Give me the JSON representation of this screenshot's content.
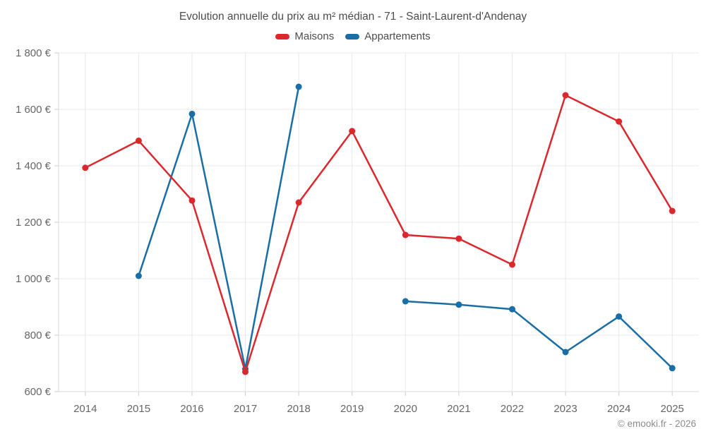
{
  "title": "Evolution annuelle du prix au m² médian - 71 - Saint-Laurent-d'Andenay",
  "footer": "© emooki.fr - 2026",
  "colors": {
    "maisons": "#dc282d",
    "appartements": "#196ea5",
    "grid": "#e8e8e8",
    "axis": "#d9d9d9",
    "tick": "#cccccc",
    "axis_text": "#666666",
    "title_text": "#4c4c4c",
    "footer_text": "#8c8c8c",
    "background": "#ffffff"
  },
  "chart_data": {
    "type": "line",
    "title": "Evolution annuelle du prix au m² médian - 71 - Saint-Laurent-d'Andenay",
    "x": [
      "2014",
      "2015",
      "2016",
      "2017",
      "2018",
      "2019",
      "2020",
      "2021",
      "2022",
      "2023",
      "2024",
      "2025"
    ],
    "series": [
      {
        "name": "Maisons",
        "color": "#dc282d",
        "values": [
          1393,
          1489,
          1277,
          670,
          1270,
          1523,
          1155,
          1142,
          1050,
          1650,
          1557,
          1240
        ]
      },
      {
        "name": "Appartements",
        "color": "#196ea5",
        "values": [
          null,
          1010,
          1584,
          680,
          1680,
          null,
          920,
          908,
          892,
          740,
          866,
          683
        ]
      }
    ],
    "xlabel": "",
    "ylabel": "",
    "ylim": [
      600,
      1800
    ],
    "ytick_step": 200,
    "ytick_format": "{value} €",
    "grid": true,
    "legend_position": "top",
    "marker_radius": 4.5,
    "line_width": 2.5
  }
}
